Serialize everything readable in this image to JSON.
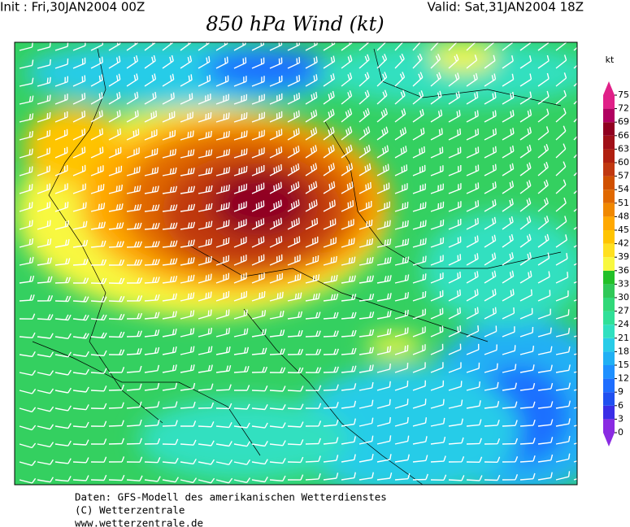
{
  "header": {
    "init": "Init : Fri,30JAN2004 00Z",
    "valid": "Valid: Sat,31JAN2004 18Z",
    "title": "850 hPa Wind (kt)"
  },
  "colorbar": {
    "unit": "kt",
    "ticks": [
      0,
      3,
      6,
      9,
      12,
      15,
      18,
      21,
      24,
      27,
      30,
      33,
      36,
      39,
      42,
      45,
      48,
      51,
      54,
      57,
      60,
      63,
      66,
      69,
      72,
      75
    ],
    "colors": [
      "#8a2be2",
      "#3a2ee6",
      "#2050f0",
      "#1e6eff",
      "#1e90ff",
      "#20b0f4",
      "#28cce8",
      "#30e0c0",
      "#30e098",
      "#30d878",
      "#30c858",
      "#22c028",
      "#f8f840",
      "#ffe020",
      "#ffc400",
      "#ffa800",
      "#f08800",
      "#e06800",
      "#d05000",
      "#c03810",
      "#b02010",
      "#a01018",
      "#900020",
      "#b00060",
      "#e02088"
    ]
  },
  "footer": [
    "Daten: GFS-Modell des amerikanischen Wetterdienstes",
    "(C) Wetterzentrale",
    "www.wetterzentrale.de"
  ]
}
